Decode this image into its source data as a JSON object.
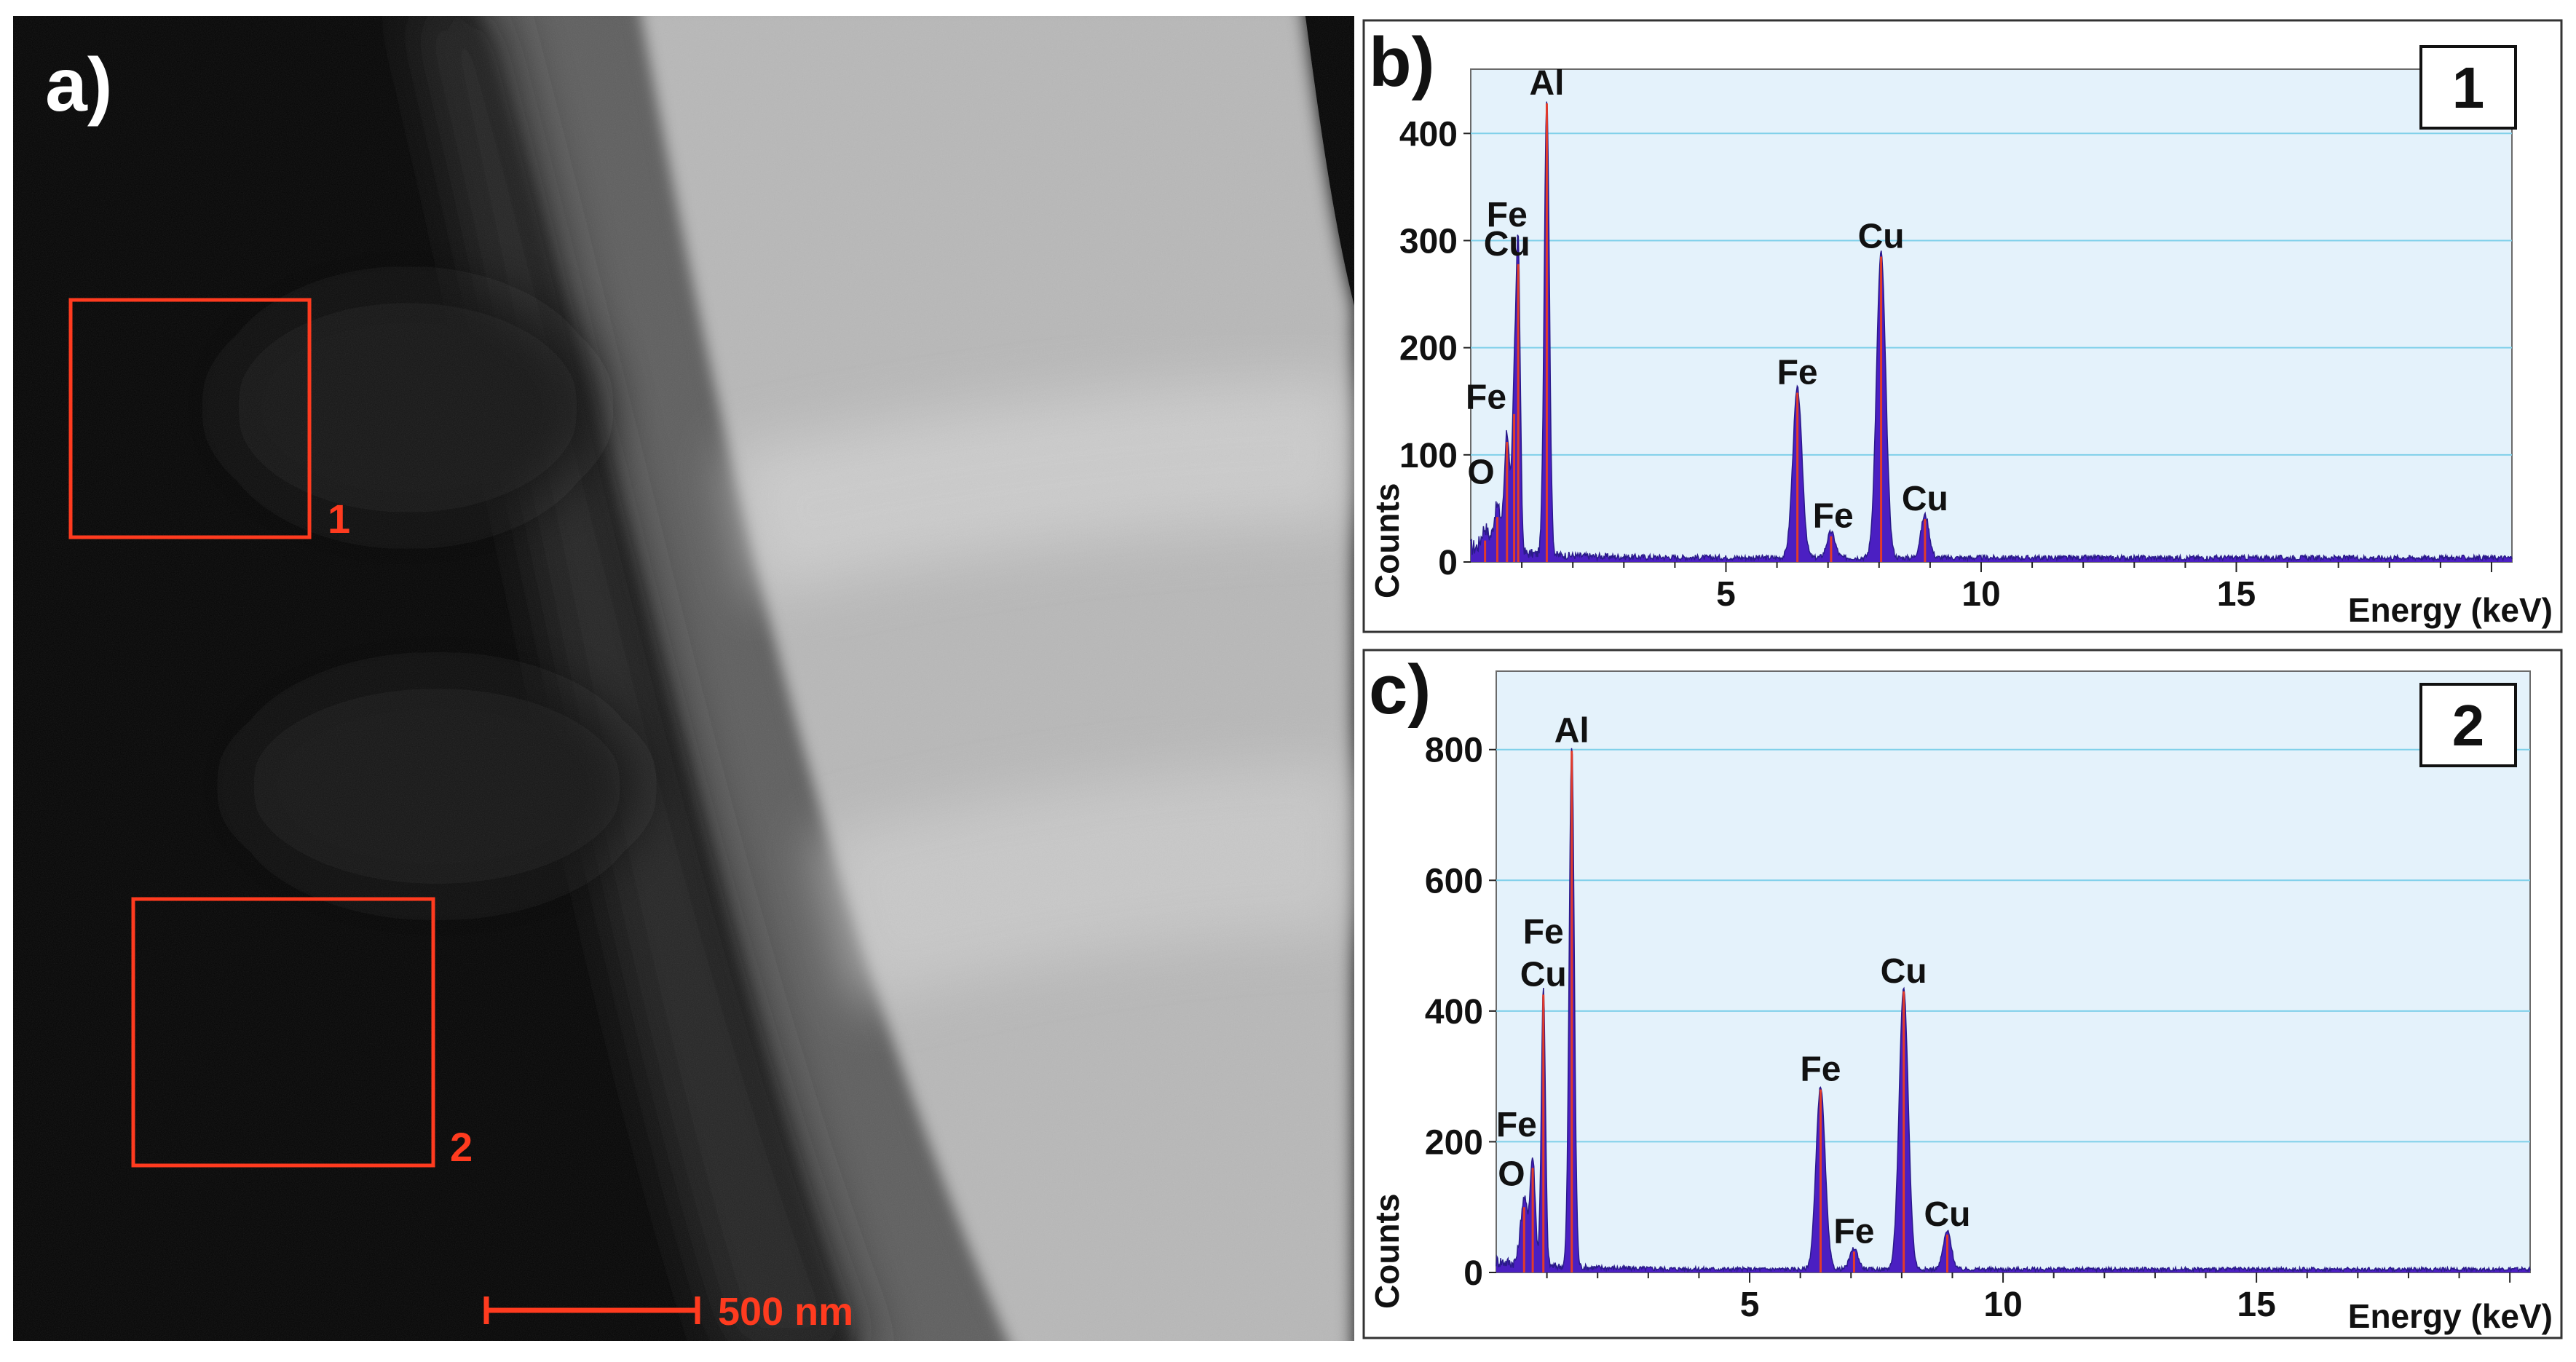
{
  "panel_a": {
    "label": "a)",
    "scale_bar_label": "500 nm",
    "regions": [
      {
        "label": "1"
      },
      {
        "label": "2"
      }
    ],
    "colors": {
      "annotation": "#ff3b1f"
    }
  },
  "chart_data": [
    {
      "type": "area",
      "panel_label": "b)",
      "spot_label": "1",
      "xlabel": "Energy (keV)",
      "ylabel": "Counts",
      "xlim": [
        0,
        20.4
      ],
      "ylim": [
        0,
        460
      ],
      "x_ticks": [
        5,
        10,
        15
      ],
      "y_ticks": [
        0,
        100,
        200,
        300,
        400
      ],
      "grid": "horizontal",
      "peaks": [
        {
          "x": 0.28,
          "y": 20,
          "w": 0.07
        },
        {
          "x": 0.52,
          "y": 42,
          "w": 0.07
        },
        {
          "x": 0.71,
          "y": 112,
          "w": 0.05
        },
        {
          "x": 0.85,
          "y": 138,
          "w": 0.04
        },
        {
          "x": 0.93,
          "y": 278,
          "w": 0.04
        },
        {
          "x": 1.49,
          "y": 428,
          "w": 0.05
        },
        {
          "x": 6.4,
          "y": 158,
          "w": 0.09
        },
        {
          "x": 7.06,
          "y": 24,
          "w": 0.08
        },
        {
          "x": 8.04,
          "y": 285,
          "w": 0.09
        },
        {
          "x": 8.9,
          "y": 40,
          "w": 0.08
        }
      ],
      "background_level": 4,
      "peak_labels": [
        {
          "text": "Al",
          "x": 1.49,
          "y": 428
        },
        {
          "text": "Fe",
          "x": 0.71,
          "y": 305
        },
        {
          "text": "Cu",
          "x": 0.71,
          "y": 278
        },
        {
          "text": "Fe",
          "x": 0.3,
          "y": 135
        },
        {
          "text": "O",
          "x": 0.2,
          "y": 65
        },
        {
          "text": "Fe",
          "x": 6.4,
          "y": 158
        },
        {
          "text": "Fe",
          "x": 7.1,
          "y": 24
        },
        {
          "text": "Cu",
          "x": 8.04,
          "y": 285
        },
        {
          "text": "Cu",
          "x": 8.9,
          "y": 40
        }
      ],
      "colors": {
        "fill": "#4b1fc2",
        "stroke": "#e23b2a",
        "background": "#e4f2fb",
        "grid": "#7fd0ea"
      }
    },
    {
      "type": "area",
      "panel_label": "c)",
      "spot_label": "2",
      "xlabel": "Energy (keV)",
      "ylabel": "Counts",
      "xlim": [
        0,
        20.4
      ],
      "ylim": [
        0,
        920
      ],
      "x_ticks": [
        5,
        10,
        15
      ],
      "y_ticks": [
        0,
        200,
        400,
        600,
        800
      ],
      "grid": "horizontal",
      "peaks": [
        {
          "x": 0.55,
          "y": 100,
          "w": 0.07
        },
        {
          "x": 0.72,
          "y": 160,
          "w": 0.05
        },
        {
          "x": 0.93,
          "y": 425,
          "w": 0.04
        },
        {
          "x": 1.49,
          "y": 798,
          "w": 0.05
        },
        {
          "x": 6.4,
          "y": 280,
          "w": 0.09
        },
        {
          "x": 7.06,
          "y": 32,
          "w": 0.08
        },
        {
          "x": 8.04,
          "y": 430,
          "w": 0.09
        },
        {
          "x": 8.9,
          "y": 58,
          "w": 0.08
        }
      ],
      "background_level": 5,
      "peak_labels": [
        {
          "text": "Al",
          "x": 1.49,
          "y": 798
        },
        {
          "text": "Fe",
          "x": 0.93,
          "y": 490
        },
        {
          "text": "Cu",
          "x": 0.93,
          "y": 425
        },
        {
          "text": "Fe",
          "x": 0.4,
          "y": 195
        },
        {
          "text": "O",
          "x": 0.3,
          "y": 120
        },
        {
          "text": "Fe",
          "x": 6.4,
          "y": 280
        },
        {
          "text": "Fe",
          "x": 7.06,
          "y": 32
        },
        {
          "text": "Cu",
          "x": 8.04,
          "y": 430
        },
        {
          "text": "Cu",
          "x": 8.9,
          "y": 58
        }
      ],
      "colors": {
        "fill": "#4b1fc2",
        "stroke": "#e23b2a",
        "background": "#e4f2fb",
        "grid": "#7fd0ea"
      }
    }
  ]
}
